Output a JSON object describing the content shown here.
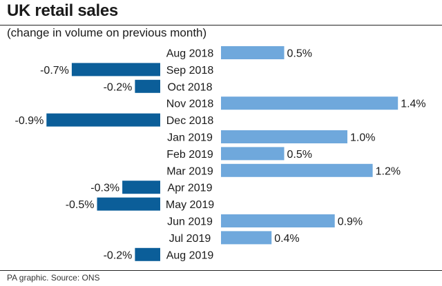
{
  "title": "UK retail sales",
  "subtitle": "(change in volume on previous month)",
  "source": "PA graphic. Source: ONS",
  "colors": {
    "positive": "#6fa8dc",
    "negative": "#0b5e99"
  },
  "chart_data": {
    "type": "bar",
    "orientation": "horizontal",
    "title": "UK retail sales",
    "subtitle": "(change in volume on previous month)",
    "categories": [
      "Aug 2018",
      "Sep 2018",
      "Oct 2018",
      "Nov 2018",
      "Dec 2018",
      "Jan 2019",
      "Feb 2019",
      "Mar 2019",
      "Apr 2019",
      "May 2019",
      "Jun 2019",
      "Jul 2019",
      "Aug 2019"
    ],
    "values": [
      0.5,
      -0.7,
      -0.2,
      1.4,
      -0.9,
      1.0,
      0.5,
      1.2,
      -0.3,
      -0.5,
      0.9,
      0.4,
      -0.2
    ],
    "value_labels": [
      "0.5%",
      "-0.7%",
      "-0.2%",
      "1.4%",
      "-0.9%",
      "1.0%",
      "0.5%",
      "1.2%",
      "-0.3%",
      "-0.5%",
      "0.9%",
      "0.4%",
      "-0.2%"
    ],
    "unit": "%",
    "xlim": [
      -0.9,
      1.4
    ]
  }
}
